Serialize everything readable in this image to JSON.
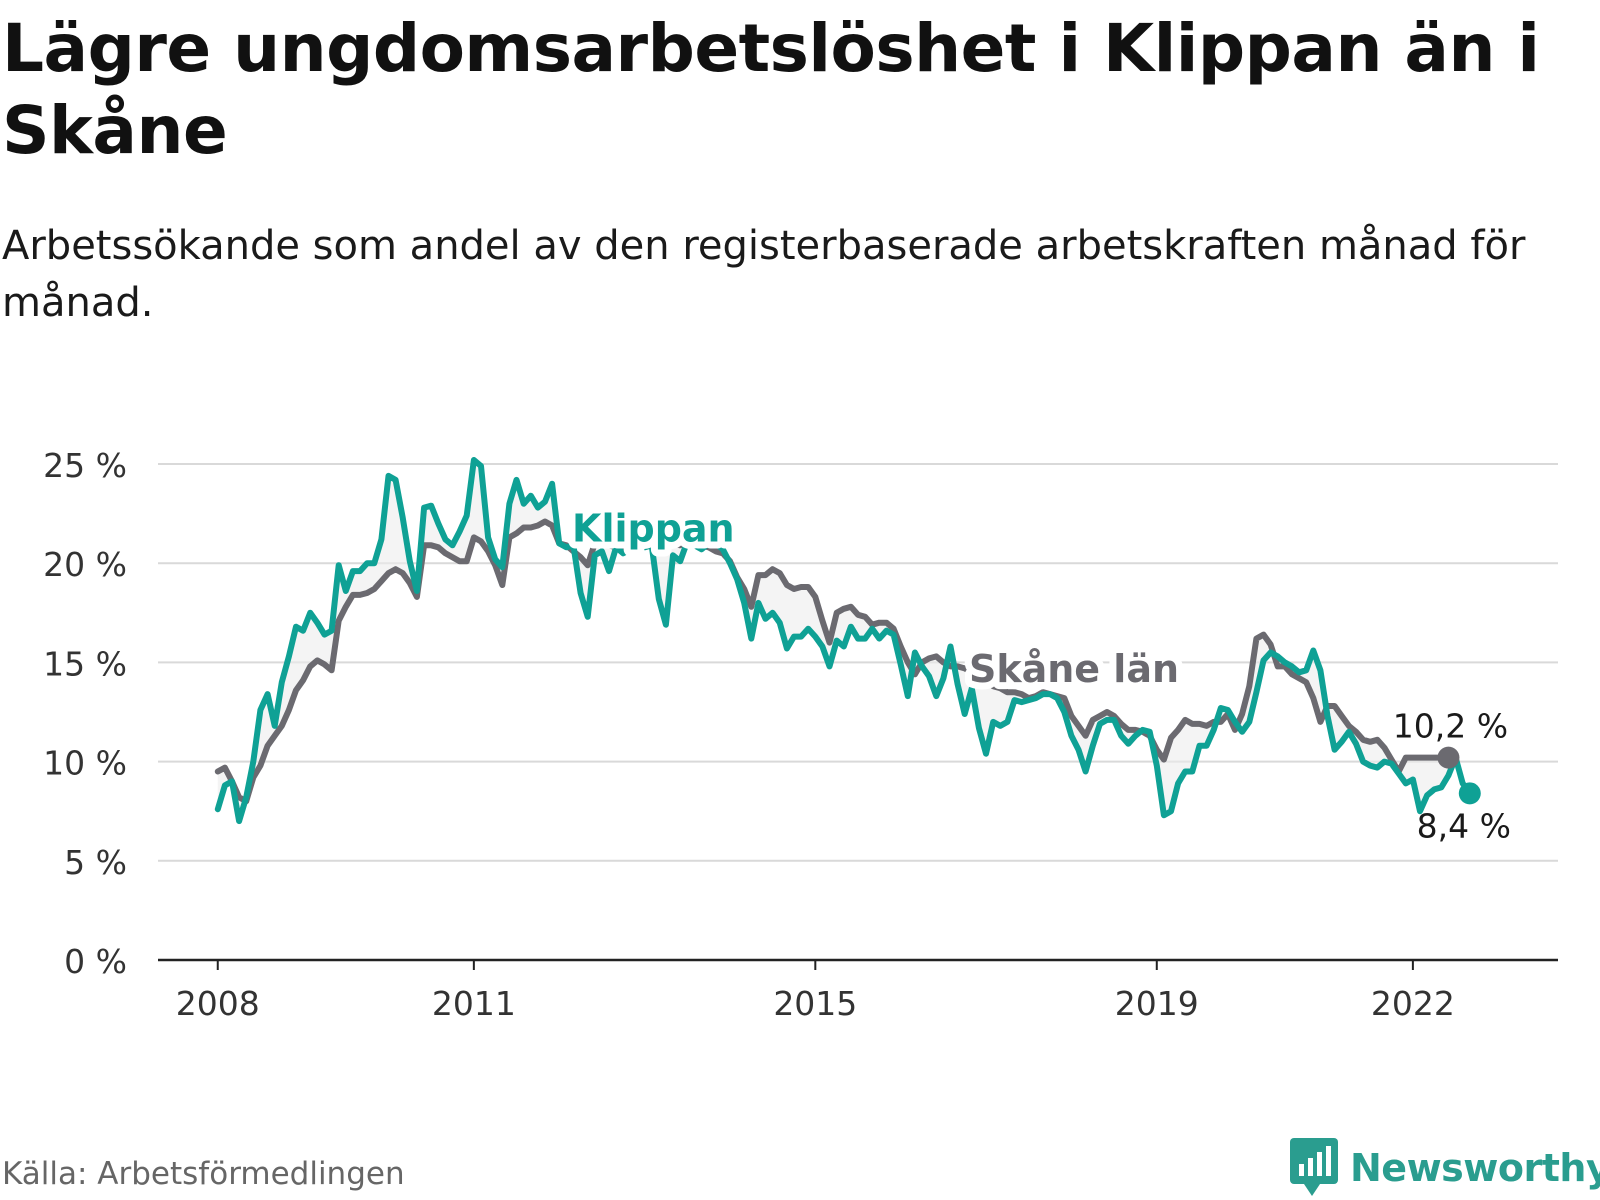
{
  "title": "Lägre ungdomsarbetslöshet i Klippan än i Skåne",
  "subtitle": "Arbetssökande som andel av den registerbaserade arbetskraften månad för månad.",
  "source": "Källa: Arbetsförmedlingen",
  "brand": "Newsworthy",
  "colors": {
    "klippan": "#0fa195",
    "skane": "#6b6a70",
    "grid": "#d9d9d9",
    "axis": "#222222",
    "brand": "#2a9d8f"
  },
  "chart_data": {
    "type": "line",
    "title": "Lägre ungdomsarbetslöshet i Klippan än i Skåne",
    "xlabel": "",
    "ylabel": "",
    "x_start": 2008.0,
    "x_step_months": 1,
    "xlim": [
      2007.3,
      2023.7
    ],
    "ylim": [
      0,
      25
    ],
    "y_ticks": [
      0,
      5,
      10,
      15,
      20,
      25
    ],
    "y_tick_labels": [
      "0 %",
      "5 %",
      "10 %",
      "15 %",
      "20 %",
      "25 %"
    ],
    "x_ticks": [
      2008,
      2011,
      2015,
      2019,
      2022
    ],
    "x_tick_labels": [
      "2008",
      "2011",
      "2015",
      "2019",
      "2022"
    ],
    "series": [
      {
        "name": "Skåne län",
        "label": "Skåne län",
        "values": [
          9.5,
          9.7,
          9.0,
          8.2,
          8.0,
          9.2,
          9.8,
          10.8,
          11.3,
          11.8,
          12.6,
          13.6,
          14.1,
          14.8,
          15.1,
          14.9,
          14.6,
          17.1,
          17.8,
          18.4,
          18.4,
          18.5,
          18.7,
          19.1,
          19.5,
          19.7,
          19.5,
          19.0,
          18.3,
          20.9,
          20.9,
          20.8,
          20.5,
          20.3,
          20.1,
          20.1,
          21.3,
          21.1,
          20.6,
          19.9,
          18.9,
          21.3,
          21.5,
          21.8,
          21.8,
          21.9,
          22.1,
          21.9,
          21.0,
          20.9,
          20.6,
          20.3,
          19.9,
          21.0,
          21.2,
          20.9,
          20.8,
          20.6,
          20.8,
          20.9,
          21.0,
          21.0,
          20.9,
          20.8,
          21.0,
          20.9,
          21.1,
          21.1,
          20.9,
          20.8,
          20.6,
          20.5,
          20.1,
          19.3,
          18.7,
          17.8,
          19.4,
          19.4,
          19.7,
          19.5,
          18.9,
          18.7,
          18.8,
          18.8,
          18.3,
          17.1,
          16.0,
          17.5,
          17.7,
          17.8,
          17.4,
          17.3,
          16.9,
          17.0,
          17.0,
          16.7,
          15.8,
          15.0,
          14.4,
          15.0,
          15.2,
          15.3,
          15.0,
          14.8,
          14.8,
          14.7,
          14.5,
          14.3,
          14.1,
          13.8,
          13.7,
          13.5,
          13.5,
          13.4,
          13.2,
          13.3,
          13.5,
          13.4,
          13.3,
          13.2,
          12.3,
          11.8,
          11.3,
          12.1,
          12.3,
          12.5,
          12.3,
          11.9,
          11.6,
          11.6,
          11.5,
          11.3,
          10.6,
          10.1,
          11.2,
          11.6,
          12.1,
          11.9,
          11.9,
          11.8,
          12.0,
          12.0,
          12.4,
          11.6,
          12.4,
          13.8,
          16.2,
          16.4,
          15.9,
          14.8,
          14.8,
          14.4,
          14.2,
          14.0,
          13.2,
          12.0,
          12.8,
          12.8,
          12.3,
          11.8,
          11.5,
          11.1,
          11.0,
          11.1,
          10.7,
          10.1,
          9.5,
          10.2,
          10.2,
          10.2,
          10.2,
          10.2,
          10.2,
          10.2
        ]
      },
      {
        "name": "Klippan",
        "label": "Klippan",
        "values": [
          7.6,
          8.8,
          9.0,
          7.0,
          8.2,
          10.0,
          12.6,
          13.4,
          11.8,
          14.0,
          15.3,
          16.8,
          16.6,
          17.5,
          17.0,
          16.4,
          16.6,
          19.9,
          18.6,
          19.6,
          19.6,
          20.0,
          20.0,
          21.2,
          24.4,
          24.2,
          22.3,
          20.1,
          18.6,
          22.8,
          22.9,
          22.0,
          21.2,
          20.9,
          21.6,
          22.4,
          25.2,
          24.9,
          21.3,
          20.2,
          19.8,
          23.0,
          24.2,
          23.0,
          23.4,
          22.8,
          23.1,
          24.0,
          21.0,
          20.8,
          20.9,
          18.5,
          17.3,
          20.4,
          20.6,
          19.6,
          20.8,
          20.5,
          20.7,
          20.9,
          20.8,
          20.9,
          18.2,
          16.9,
          20.4,
          20.1,
          21.1,
          20.9,
          20.7,
          21.0,
          21.0,
          20.7,
          20.0,
          19.2,
          18.0,
          16.2,
          18.0,
          17.2,
          17.5,
          17.0,
          15.7,
          16.3,
          16.3,
          16.7,
          16.3,
          15.8,
          14.8,
          16.1,
          15.8,
          16.8,
          16.2,
          16.2,
          16.7,
          16.2,
          16.6,
          16.4,
          14.9,
          13.3,
          15.5,
          14.8,
          14.3,
          13.3,
          14.2,
          15.8,
          13.9,
          12.4,
          13.7,
          11.7,
          10.4,
          12.0,
          11.8,
          12.0,
          13.1,
          13.0,
          13.1,
          13.2,
          13.4,
          13.4,
          13.2,
          12.5,
          11.3,
          10.6,
          9.5,
          10.8,
          11.9,
          12.1,
          12.1,
          11.3,
          10.9,
          11.3,
          11.6,
          11.5,
          9.8,
          7.3,
          7.5,
          8.9,
          9.5,
          9.5,
          10.8,
          10.8,
          11.6,
          12.7,
          12.6,
          12.0,
          11.5,
          12.0,
          13.5,
          15.1,
          15.5,
          15.3,
          15.0,
          14.8,
          14.5,
          14.6,
          15.6,
          14.6,
          12.3,
          10.6,
          11.0,
          11.5,
          10.9,
          10.0,
          9.8,
          9.7,
          10.0,
          9.9,
          9.4,
          8.9,
          9.1,
          7.5,
          8.3,
          8.6,
          8.7,
          9.3,
          10.2,
          8.9,
          8.4
        ]
      }
    ],
    "end_labels": [
      {
        "series": "Skåne län",
        "text": "10,2 %"
      },
      {
        "series": "Klippan",
        "text": "8,4 %"
      }
    ],
    "legend": "inline labels"
  }
}
